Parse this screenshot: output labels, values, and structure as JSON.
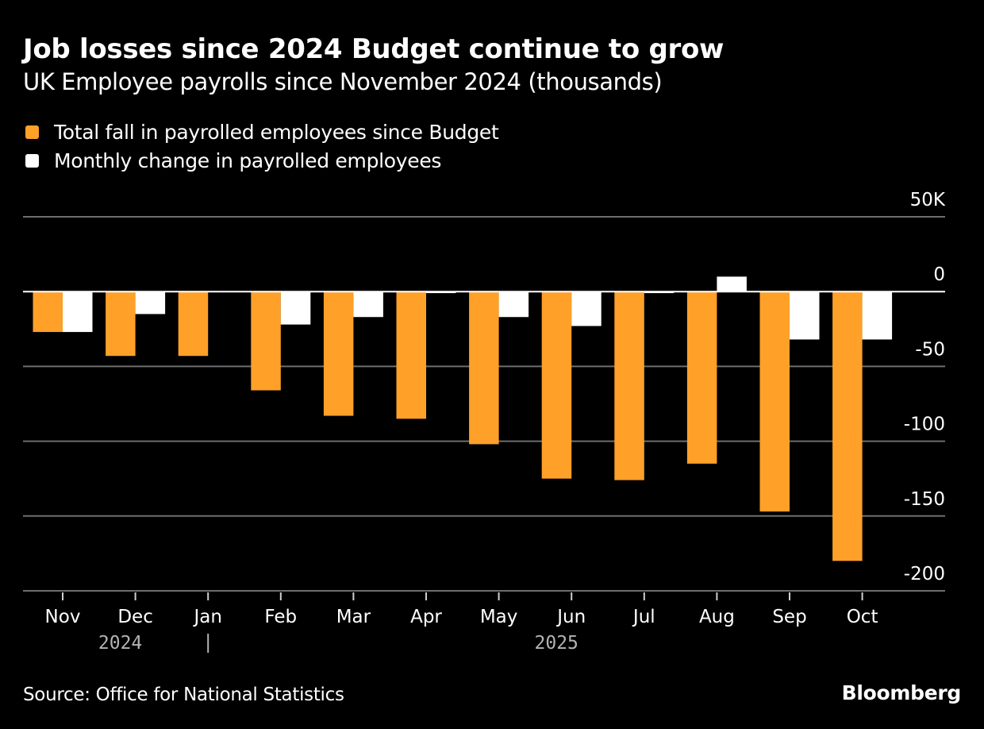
{
  "header": {
    "title": "Job losses since 2024 Budget continue to grow",
    "subtitle": "UK Employee payrolls since November 2024 (thousands)"
  },
  "legend": [
    {
      "label": "Total fall in payrolled employees since Budget",
      "color": "#ffa028"
    },
    {
      "label": "Monthly change in payrolled employees",
      "color": "#ffffff"
    }
  ],
  "footer": {
    "source": "Source: Office for National Statistics",
    "brand": "Bloomberg"
  },
  "chart_data": {
    "type": "bar",
    "title": "Job losses since 2024 Budget continue to grow",
    "subtitle": "UK Employee payrolls since November 2024 (thousands)",
    "xlabel": "",
    "ylabel": "",
    "categories": [
      "Nov",
      "Dec",
      "Jan",
      "Feb",
      "Mar",
      "Apr",
      "May",
      "Jun",
      "Jul",
      "Aug",
      "Sep",
      "Oct"
    ],
    "year_labels": [
      {
        "label": "2024",
        "under": "Dec"
      },
      {
        "label": "2025",
        "under": "Jun"
      }
    ],
    "year_separator_at": "Jan",
    "series": [
      {
        "name": "Total fall in payrolled employees since Budget",
        "color": "#ffa028",
        "values": [
          -27,
          -43,
          -43,
          -66,
          -83,
          -85,
          -102,
          -125,
          -126,
          -115,
          -147,
          -180
        ]
      },
      {
        "name": "Monthly change in payrolled employees",
        "color": "#ffffff",
        "values": [
          -27,
          -15,
          0,
          -22,
          -17,
          -1,
          -17,
          -23,
          -1,
          10,
          -32,
          -32
        ]
      }
    ],
    "yticks": [
      50,
      0,
      -50,
      -100,
      -150,
      -200
    ],
    "ytick_labels": [
      "50K",
      "0",
      "-50",
      "-100",
      "-150",
      "-200"
    ],
    "ylim": [
      -200,
      50
    ],
    "grid": true,
    "legend_position": "top-left",
    "axis_position": "right"
  }
}
